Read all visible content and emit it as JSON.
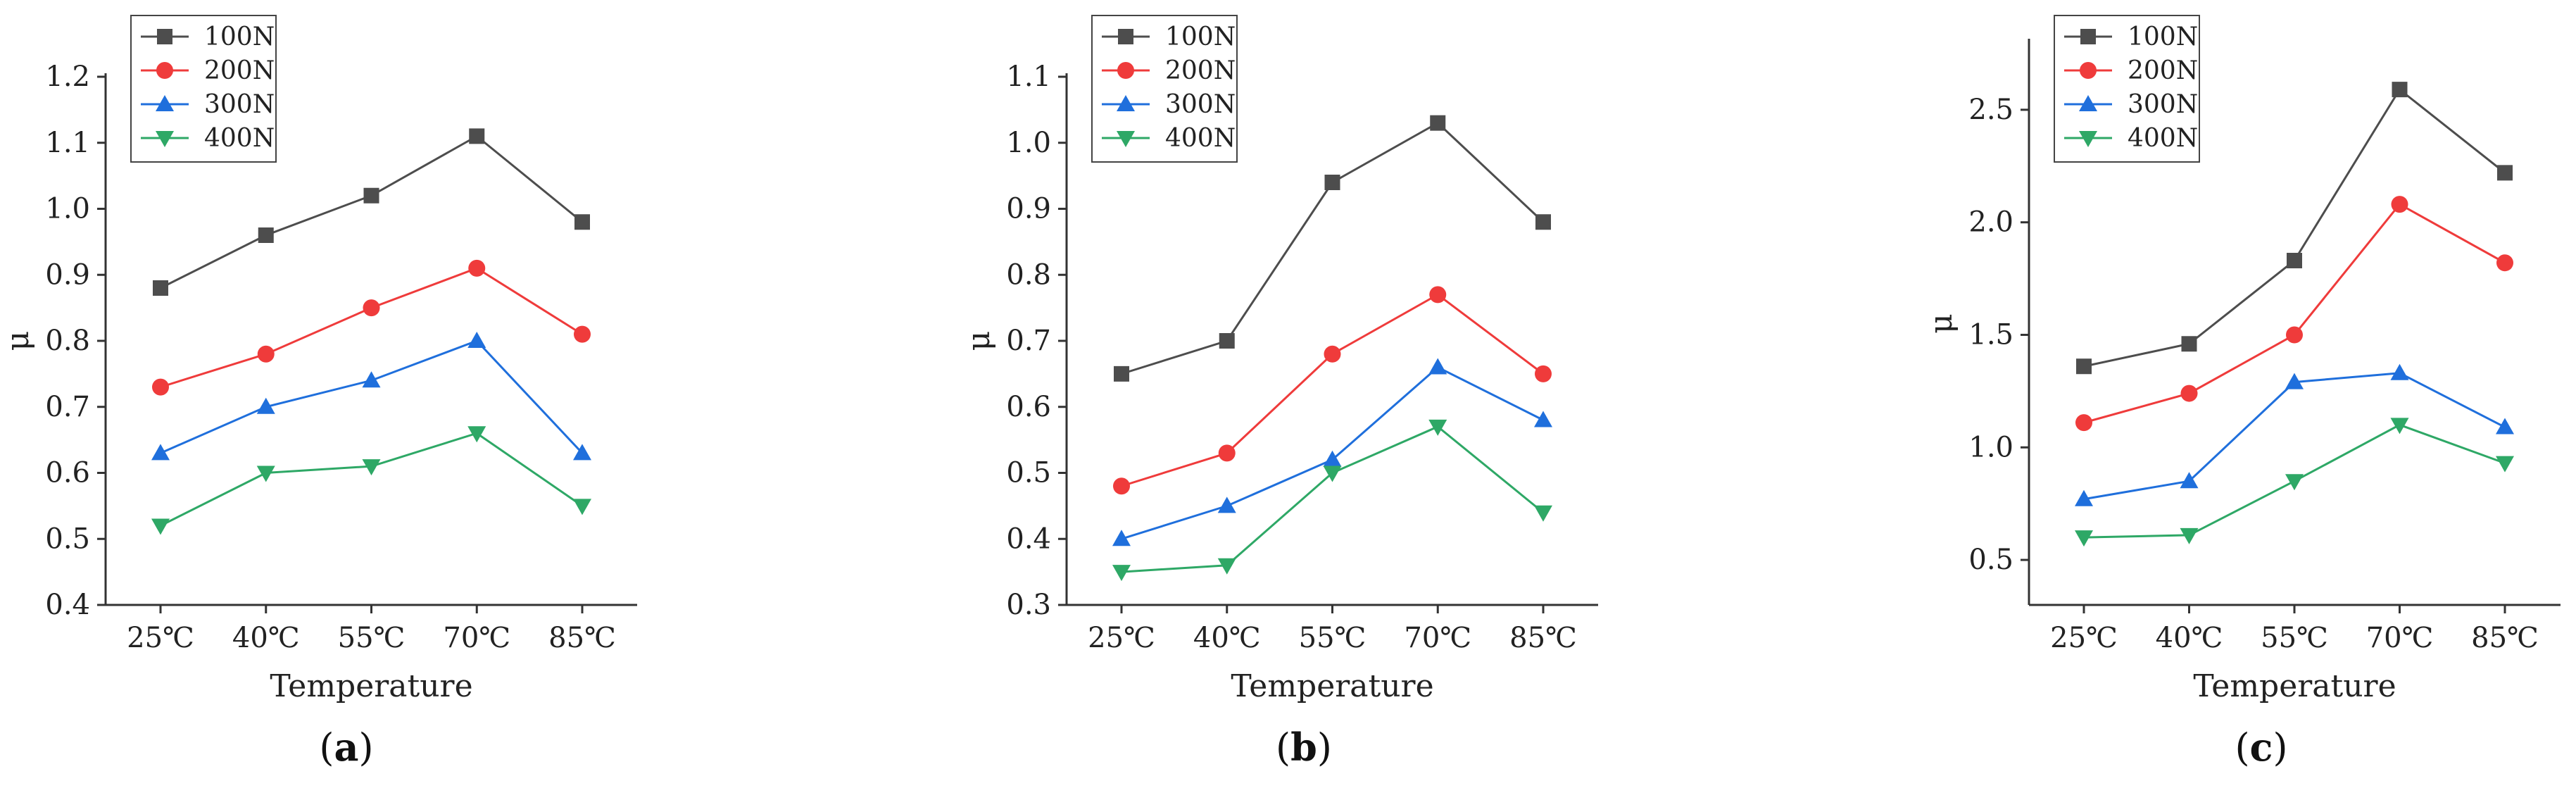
{
  "chart_data": [
    {
      "type": "line",
      "panel_label": "a",
      "categories": [
        "25℃",
        "40℃",
        "55℃",
        "70℃",
        "85℃"
      ],
      "xlabel": "Temperature",
      "ylabel": "μ",
      "ylim": [
        0.4,
        1.2
      ],
      "yticks": [
        0.4,
        0.5,
        0.6,
        0.7,
        0.8,
        0.9,
        1.0,
        1.1,
        1.2
      ],
      "ytick_labels": [
        "0.4",
        "0.5",
        "0.6",
        "0.7",
        "0.8",
        "0.9",
        "1.0",
        "1.1",
        "1.2"
      ],
      "legend_position": "top-left",
      "series": [
        {
          "name": "100N",
          "values": [
            0.88,
            0.96,
            1.02,
            1.11,
            0.98
          ]
        },
        {
          "name": "200N",
          "values": [
            0.73,
            0.78,
            0.85,
            0.91,
            0.81
          ]
        },
        {
          "name": "300N",
          "values": [
            0.63,
            0.7,
            0.74,
            0.8,
            0.63
          ]
        },
        {
          "name": "400N",
          "values": [
            0.52,
            0.6,
            0.61,
            0.66,
            0.55
          ]
        }
      ]
    },
    {
      "type": "line",
      "panel_label": "b",
      "categories": [
        "25℃",
        "40℃",
        "55℃",
        "70℃",
        "85℃"
      ],
      "xlabel": "Temperature",
      "ylabel": "μ",
      "ylim": [
        0.3,
        1.1
      ],
      "yticks": [
        0.3,
        0.4,
        0.5,
        0.6,
        0.7,
        0.8,
        0.9,
        1.0,
        1.1
      ],
      "ytick_labels": [
        "0.3",
        "0.4",
        "0.5",
        "0.6",
        "0.7",
        "0.8",
        "0.9",
        "1.0",
        "1.1"
      ],
      "legend_position": "top-left",
      "series": [
        {
          "name": "100N",
          "values": [
            0.65,
            0.7,
            0.94,
            1.03,
            0.88
          ]
        },
        {
          "name": "200N",
          "values": [
            0.48,
            0.53,
            0.68,
            0.77,
            0.65
          ]
        },
        {
          "name": "300N",
          "values": [
            0.4,
            0.45,
            0.52,
            0.66,
            0.58
          ]
        },
        {
          "name": "400N",
          "values": [
            0.35,
            0.36,
            0.5,
            0.57,
            0.44
          ]
        }
      ]
    },
    {
      "type": "line",
      "panel_label": "c",
      "categories": [
        "25℃",
        "40℃",
        "55℃",
        "70℃",
        "85℃"
      ],
      "xlabel": "Temperature",
      "ylabel": "μ",
      "ylim": [
        0.3,
        2.8
      ],
      "yticks": [
        0.5,
        1.0,
        1.5,
        2.0,
        2.5
      ],
      "ytick_labels": [
        "0.5",
        "1.0",
        "1.5",
        "2.0",
        "2.5"
      ],
      "legend_position": "top-left",
      "series": [
        {
          "name": "100N",
          "values": [
            1.36,
            1.46,
            1.83,
            2.59,
            2.22
          ]
        },
        {
          "name": "200N",
          "values": [
            1.11,
            1.24,
            1.5,
            2.08,
            1.82
          ]
        },
        {
          "name": "300N",
          "values": [
            0.77,
            0.85,
            1.29,
            1.33,
            1.09
          ]
        },
        {
          "name": "400N",
          "values": [
            0.6,
            0.61,
            0.85,
            1.1,
            0.93
          ]
        }
      ]
    }
  ],
  "series_styles": [
    {
      "color": "#4d4d4d",
      "marker": "square"
    },
    {
      "color": "#ef3b3b",
      "marker": "circle"
    },
    {
      "color": "#1f6fdc",
      "marker": "triangle-up"
    },
    {
      "color": "#2ea866",
      "marker": "triangle-down"
    }
  ],
  "axis_color": "#333333"
}
